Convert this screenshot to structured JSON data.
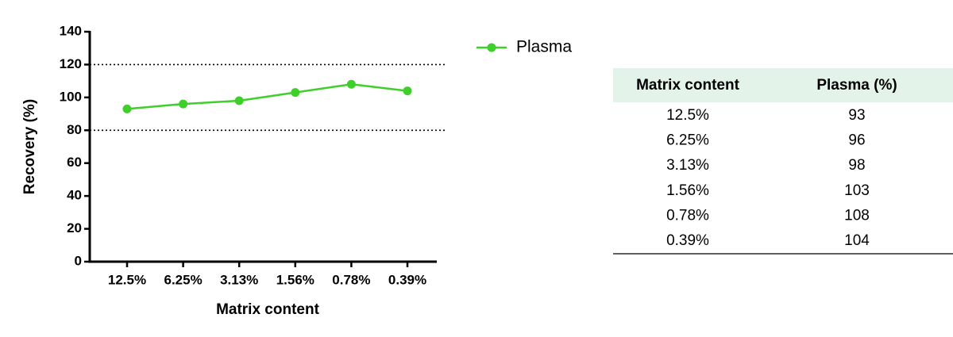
{
  "chart_data": {
    "type": "line",
    "y_label": "Recovery (%)",
    "x_label": "Matrix content",
    "categories": [
      "12.5%",
      "6.25%",
      "3.13%",
      "1.56%",
      "0.78%",
      "0.39%"
    ],
    "series": [
      {
        "name": "Plasma",
        "color": "#3ecf2a",
        "values": [
          93,
          96,
          98,
          103,
          108,
          104
        ]
      }
    ],
    "ylim": [
      0,
      140
    ],
    "yticks": [
      0,
      20,
      40,
      60,
      80,
      100,
      120,
      140
    ],
    "reference_lines": [
      80,
      120
    ]
  },
  "table": {
    "header": [
      "Matrix content",
      "Plasma (%)"
    ],
    "rows": [
      [
        "12.5%",
        93
      ],
      [
        "6.25%",
        96
      ],
      [
        "3.13%",
        98
      ],
      [
        "1.56%",
        103
      ],
      [
        "0.78%",
        108
      ],
      [
        "0.39%",
        104
      ]
    ]
  }
}
